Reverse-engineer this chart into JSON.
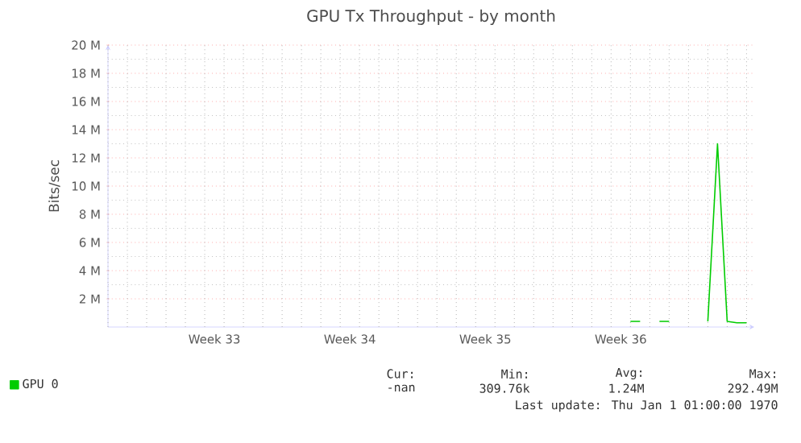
{
  "chart_data": {
    "type": "line",
    "title": "GPU Tx Throughput - by month",
    "ylabel": "Bits/sec",
    "categories": [
      null,
      null,
      null,
      null,
      null,
      null,
      null,
      null,
      null,
      null,
      null,
      "Week 33",
      null,
      null,
      null,
      null,
      null,
      null,
      null,
      null,
      null,
      null,
      null,
      null,
      null,
      "Week 34",
      null,
      null,
      null,
      null,
      null,
      null,
      null,
      null,
      null,
      null,
      null,
      null,
      null,
      "Week 35",
      null,
      null,
      null,
      null,
      null,
      null,
      null,
      null,
      null,
      null,
      null,
      null,
      null,
      "Week 36",
      null,
      null,
      null,
      null,
      null,
      null,
      null,
      null,
      null,
      null,
      null,
      null,
      null
    ],
    "series": [
      {
        "name": "GPU 0",
        "color": "#00cc00",
        "values": [
          null,
          null,
          null,
          null,
          null,
          null,
          null,
          null,
          null,
          null,
          null,
          null,
          null,
          null,
          null,
          null,
          null,
          null,
          null,
          null,
          null,
          null,
          null,
          null,
          null,
          null,
          null,
          null,
          null,
          null,
          null,
          null,
          null,
          null,
          null,
          null,
          null,
          null,
          null,
          null,
          null,
          null,
          null,
          null,
          null,
          null,
          null,
          null,
          null,
          null,
          null,
          null,
          null,
          null,
          400000,
          400000,
          null,
          400000,
          400000,
          null,
          null,
          null,
          400000,
          13000000,
          400000,
          300000,
          300000
        ]
      }
    ],
    "ylim": [
      0,
      20000000
    ],
    "yticks": [
      {
        "value": 2000000,
        "label": "2 M"
      },
      {
        "value": 4000000,
        "label": "4 M"
      },
      {
        "value": 6000000,
        "label": "6 M"
      },
      {
        "value": 8000000,
        "label": "8 M"
      },
      {
        "value": 10000000,
        "label": "10 M"
      },
      {
        "value": 12000000,
        "label": "12 M"
      },
      {
        "value": 14000000,
        "label": "14 M"
      },
      {
        "value": 16000000,
        "label": "16 M"
      },
      {
        "value": 18000000,
        "label": "18 M"
      },
      {
        "value": 20000000,
        "label": "20 M"
      }
    ],
    "grid": true,
    "legend": "bottom left",
    "annotations": [
      "Cur:",
      "Min:",
      "Avg:",
      "Max:",
      "-nan",
      "309.76k",
      "1.24M",
      "292.49M",
      "Last update: Thu Jan  1 01:00:00 1970"
    ]
  }
}
